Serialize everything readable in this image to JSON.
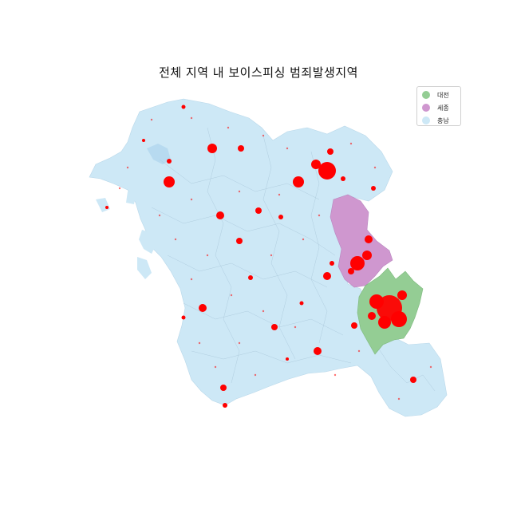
{
  "title": "전체 지역 내 보이스피싱 범죄발생지역",
  "legend": {
    "items": [
      {
        "label": "대전",
        "color": "#94cd94"
      },
      {
        "label": "세종",
        "color": "#cf97cf"
      },
      {
        "label": "충남",
        "color": "#cde8f6"
      }
    ]
  },
  "colors": {
    "crime_point": "#ff0000",
    "boundary_line": "#a9c6d8",
    "background": "#ffffff"
  }
}
